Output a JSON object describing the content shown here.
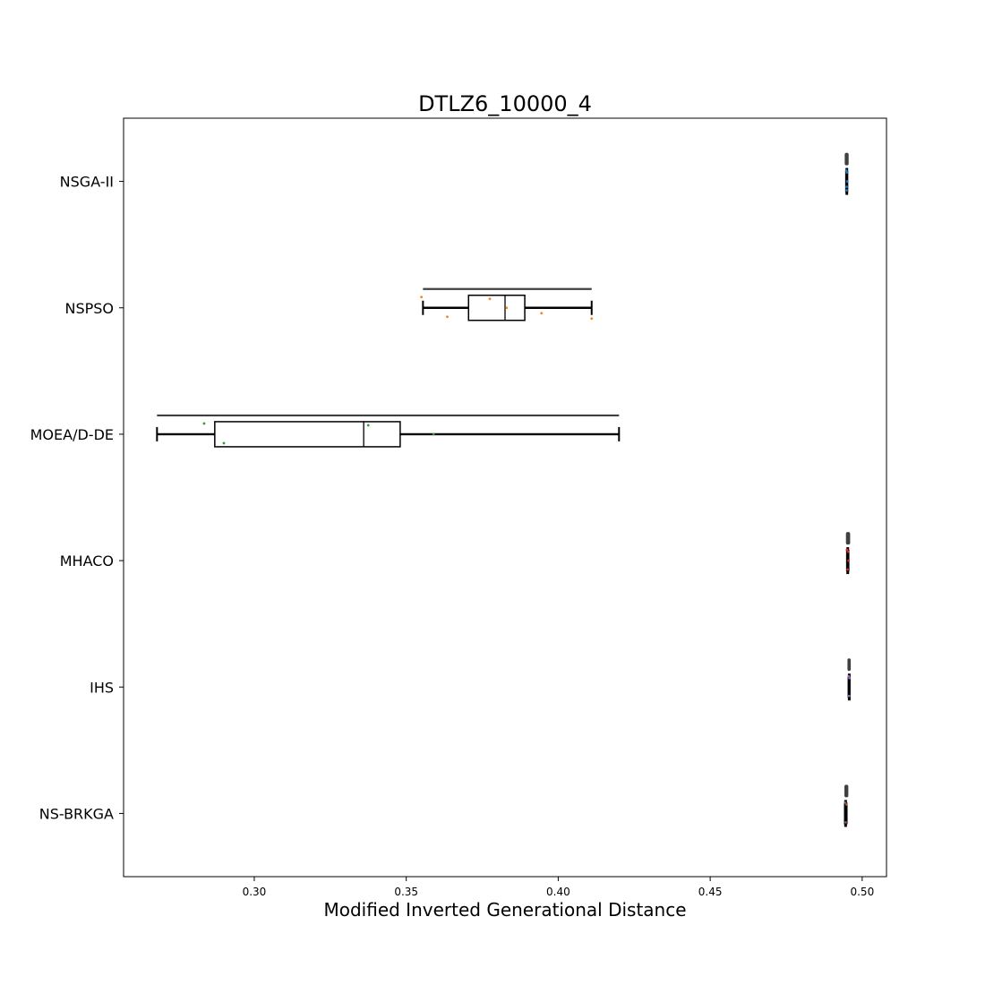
{
  "chart_data": {
    "type": "box",
    "title": "DTLZ6_10000_4",
    "xlabel": "Modified Inverted Generational Distance",
    "ylabel": "",
    "xlim": [
      0.257,
      0.508
    ],
    "xticks": [
      0.3,
      0.35,
      0.4,
      0.45,
      0.5
    ],
    "xtick_labels": [
      "0.30",
      "0.35",
      "0.40",
      "0.45",
      "0.50"
    ],
    "grid": false,
    "series": [
      {
        "name": "NSGA-II",
        "color": "#1f77b4",
        "box": {
          "whislo": 0.4947,
          "q1": 0.4948,
          "med": 0.4949,
          "q3": 0.495,
          "whishi": 0.4951
        },
        "range": [
          0.4947,
          0.4951
        ],
        "points": [
          0.4948,
          0.4949,
          0.495,
          0.4951,
          0.4949
        ]
      },
      {
        "name": "NSPSO",
        "color": "#ff7f0e",
        "box": {
          "whislo": 0.3555,
          "q1": 0.3705,
          "med": 0.3825,
          "q3": 0.389,
          "whishi": 0.411
        },
        "range": [
          0.3555,
          0.411
        ],
        "points": [
          0.355,
          0.3635,
          0.3775,
          0.383,
          0.3945,
          0.411
        ]
      },
      {
        "name": "MOEA/D-DE",
        "color": "#2ca02c",
        "box": {
          "whislo": 0.268,
          "q1": 0.287,
          "med": 0.336,
          "q3": 0.348,
          "whishi": 0.42
        },
        "range": [
          0.268,
          0.42
        ],
        "points": [
          0.2835,
          0.29,
          0.3375,
          0.359
        ]
      },
      {
        "name": "MHACO",
        "color": "#d62728",
        "box": {
          "whislo": 0.495,
          "q1": 0.4951,
          "med": 0.4953,
          "q3": 0.4954,
          "whishi": 0.4955
        },
        "range": [
          0.4951,
          0.4956
        ],
        "points": [
          0.495,
          0.4952,
          0.4954,
          0.4955
        ]
      },
      {
        "name": "IHS",
        "color": "#9467bd",
        "box": {
          "whislo": 0.4955,
          "q1": 0.4956,
          "med": 0.4957,
          "q3": 0.4958,
          "whishi": 0.4958
        },
        "range": [
          0.4956,
          0.4958
        ],
        "points": [
          0.4956,
          0.4957,
          0.4958
        ]
      },
      {
        "name": "NS-BRKGA",
        "color": "#8c564b",
        "box": {
          "whislo": 0.4943,
          "q1": 0.4944,
          "med": 0.4946,
          "q3": 0.4947,
          "whishi": 0.4949
        },
        "range": [
          0.4946,
          0.495
        ],
        "points": [
          0.4944,
          0.4946,
          0.4948
        ]
      }
    ]
  }
}
